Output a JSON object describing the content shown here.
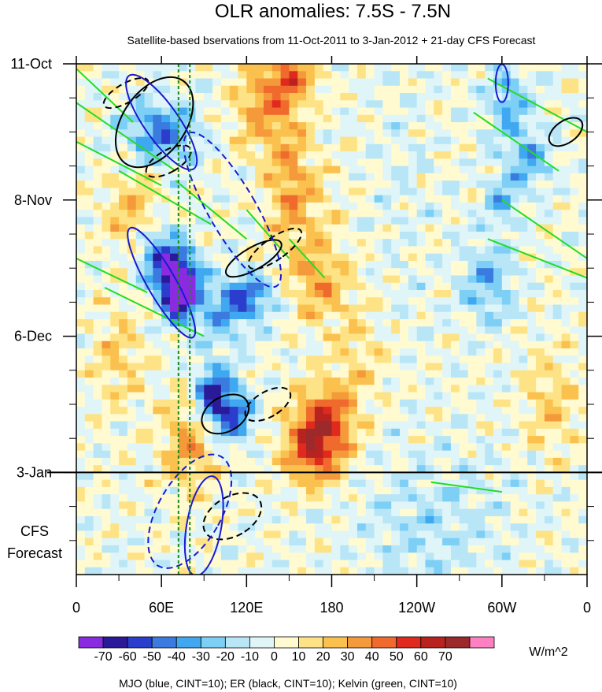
{
  "chart_data": {
    "type": "heatmap",
    "title": "OLR anomalies: 7.5S - 7.5N",
    "subtitle": "Satellite-based bservations from 11-Oct-2011 to 3-Jan-2012 + 21-day CFS Forecast",
    "x_tick_labels": [
      "0",
      "60E",
      "120E",
      "180",
      "120W",
      "60W",
      "0"
    ],
    "x_tick_longitudes": [
      0,
      60,
      120,
      180,
      240,
      300,
      360
    ],
    "xlim": [
      0,
      360
    ],
    "y_tick_labels": [
      "11-Oct",
      "8-Nov",
      "6-Dec",
      "3-Jan"
    ],
    "y_tick_days": [
      0,
      28,
      56,
      84
    ],
    "ylim_days": [
      0,
      105
    ],
    "observation_end_day": 84,
    "forecast_label": [
      "CFS",
      "Forecast"
    ],
    "reference_longitudes": [
      72,
      80
    ],
    "colorbar": {
      "unit": "W/m^2",
      "levels": [
        -70,
        -60,
        -50,
        -40,
        -30,
        -20,
        -10,
        0,
        10,
        20,
        30,
        40,
        50,
        60,
        70
      ],
      "labels": [
        "-70",
        "-60",
        "-50",
        "-40",
        "-30",
        "-20",
        "-10",
        "0",
        "10",
        "20",
        "30",
        "40",
        "50",
        "60",
        "70"
      ],
      "colors": [
        "#8a2be2",
        "#2a1a99",
        "#2b3dcc",
        "#3b7be0",
        "#3fa8f0",
        "#7dcff5",
        "#b8e6f7",
        "#e0f5f8",
        "#fffad0",
        "#fde385",
        "#fbc14f",
        "#f59a3a",
        "#ef6a2c",
        "#e02a20",
        "#b8231f",
        "#9c2a2a",
        "#ff80c0"
      ]
    },
    "footer": "MJO (blue, CINT=10); ER (black, CINT=10); Kelvin (green, CINT=10)",
    "contour_colors": {
      "mjo": "#1a1ad0",
      "er": "#000000",
      "kelvin": "#22dd22"
    }
  }
}
